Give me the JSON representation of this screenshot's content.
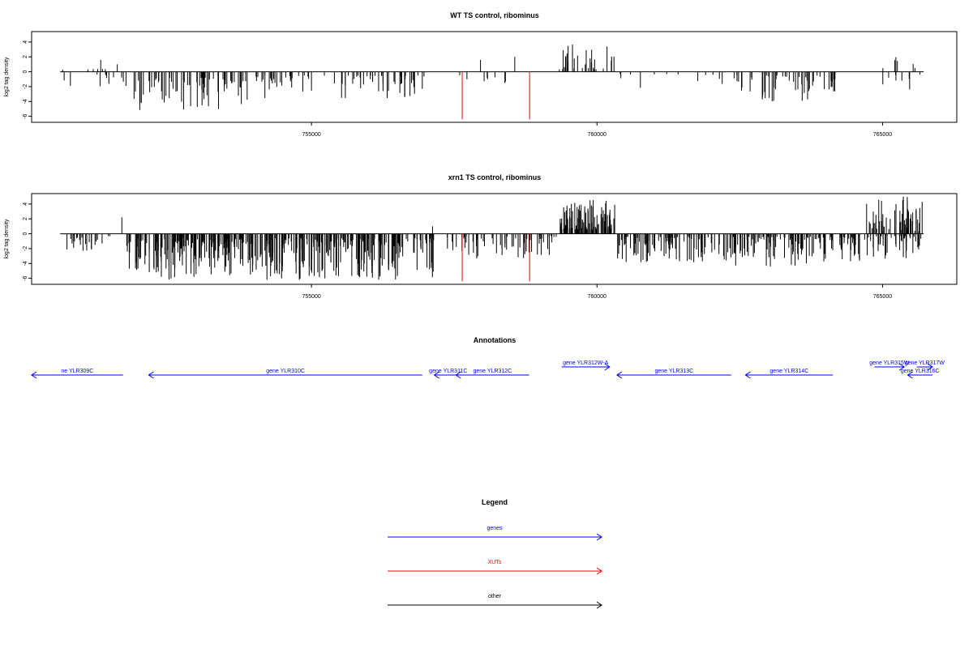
{
  "colors": {
    "genes": "#0000ff",
    "xuts": "#ff0000",
    "other": "#000000",
    "frame": "#000000"
  },
  "chart_data": [
    {
      "type": "bar",
      "title": "WT TS control, ribominus",
      "ylabel": "log2 tag density",
      "xlim": [
        750100,
        766300
      ],
      "ylim": [
        -6.8,
        5.4
      ],
      "yticks": [
        -6,
        -4,
        -2,
        0,
        2,
        4
      ],
      "xticks": [
        755000,
        760000,
        765000
      ],
      "grid": false,
      "seed": 7,
      "baseline": {
        "from": 750600,
        "to": 765720,
        "value": 0
      },
      "bar_regions": [
        {
          "from": 750620,
          "to": 751400,
          "count": 12,
          "min": -2.2,
          "max": 0.4
        },
        {
          "from": 751400,
          "to": 751750,
          "count": 5,
          "min": -2.8,
          "max": -0.4
        },
        {
          "from": 751750,
          "to": 754000,
          "count": 70,
          "min": -5.2,
          "max": -0.8
        },
        {
          "from": 754000,
          "to": 757000,
          "count": 75,
          "min": -3.6,
          "max": -0.5
        },
        {
          "from": 757500,
          "to": 758400,
          "count": 8,
          "min": -1.6,
          "max": -0.3
        },
        {
          "from": 759300,
          "to": 760300,
          "count": 30,
          "min": 0.3,
          "max": 3.7
        },
        {
          "from": 760400,
          "to": 762200,
          "count": 12,
          "min": -2.4,
          "max": -0.3
        },
        {
          "from": 762400,
          "to": 764300,
          "count": 55,
          "min": -4.0,
          "max": -0.5
        },
        {
          "from": 765000,
          "to": 765700,
          "count": 14,
          "min": -2.6,
          "max": 2.2
        }
      ],
      "bars": [
        {
          "x": 751310,
          "y": 1.6
        },
        {
          "x": 751600,
          "y": 1.0
        },
        {
          "x": 757960,
          "y": 1.6
        },
        {
          "x": 758560,
          "y": 2.0
        }
      ],
      "highlight_bars": [
        {
          "x": 757640,
          "y": -6.4
        },
        {
          "x": 758820,
          "y": -6.4
        }
      ]
    },
    {
      "type": "bar",
      "title": "xrn1 TS control, ribominus",
      "ylabel": "log2 tag density",
      "xlim": [
        750100,
        766300
      ],
      "ylim": [
        -6.8,
        5.4
      ],
      "yticks": [
        -6,
        -4,
        -2,
        0,
        2,
        4
      ],
      "xticks": [
        755000,
        760000,
        765000
      ],
      "grid": false,
      "seed": 13,
      "baseline": {
        "from": 750600,
        "to": 765720,
        "value": 0
      },
      "bar_regions": [
        {
          "from": 750620,
          "to": 751550,
          "count": 25,
          "min": -2.3,
          "max": -0.3
        },
        {
          "from": 751750,
          "to": 757150,
          "count": 400,
          "min": -6.2,
          "max": -0.6
        },
        {
          "from": 757300,
          "to": 759300,
          "count": 60,
          "min": -3.4,
          "max": -0.3
        },
        {
          "from": 759350,
          "to": 760350,
          "count": 90,
          "min": 0.6,
          "max": 4.6
        },
        {
          "from": 760350,
          "to": 762400,
          "count": 100,
          "min": -4.0,
          "max": -0.4
        },
        {
          "from": 762400,
          "to": 764600,
          "count": 120,
          "min": -4.4,
          "max": -0.4
        },
        {
          "from": 764650,
          "to": 765700,
          "count": 110,
          "min": -3.4,
          "max": 5.0
        }
      ],
      "bars": [
        {
          "x": 751680,
          "y": 2.2
        },
        {
          "x": 757120,
          "y": 1.0
        }
      ],
      "highlight_bars": [
        {
          "x": 757640,
          "y": -6.4
        },
        {
          "x": 758820,
          "y": -6.4
        }
      ]
    }
  ],
  "annotations": {
    "title": "Annotations",
    "genes": [
      {
        "label": "ne YLR309C",
        "start": 750100,
        "end": 751700,
        "strand": "-"
      },
      {
        "label": "gene YLR310C",
        "start": 752150,
        "end": 756940,
        "strand": "-"
      },
      {
        "label": "gene YLR311C",
        "start": 757150,
        "end": 757640,
        "strand": "-"
      },
      {
        "label": "gene YLR312C",
        "start": 757530,
        "end": 758810,
        "strand": "-"
      },
      {
        "label": "gene YLR312W-A",
        "start": 759380,
        "end": 760220,
        "strand": "+",
        "row": 1
      },
      {
        "label": "gene YLR313C",
        "start": 760350,
        "end": 762350,
        "strand": "-"
      },
      {
        "label": "gene YLR314C",
        "start": 762600,
        "end": 764130,
        "strand": "-"
      },
      {
        "label": "gene YLR315W",
        "start": 764860,
        "end": 765380,
        "strand": "+",
        "row": 1
      },
      {
        "label": "gene YLR317W",
        "start": 765600,
        "end": 766300,
        "strand": "+",
        "row": 1
      },
      {
        "label": "gene YLR316C",
        "start": 765440,
        "end": 766300,
        "strand": "-"
      }
    ]
  },
  "legend": {
    "title": "Legend",
    "items": [
      {
        "label": "genes",
        "color": "#0000ff"
      },
      {
        "label": "XUTs",
        "color": "#ff0000"
      },
      {
        "label": "other",
        "color": "#000000"
      }
    ]
  }
}
